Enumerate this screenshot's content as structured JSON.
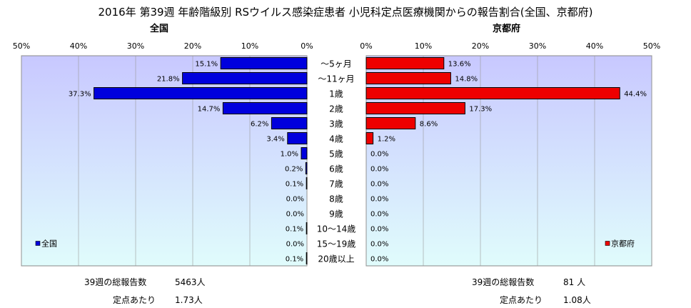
{
  "chart_data": {
    "type": "bar",
    "title": "2016年 第39週 年齢階級別 RSウイルス感染症患者 小児科定点医療機関からの報告割合(全国、京都府)",
    "categories": [
      "～5ヶ月",
      "～11ヶ月",
      "1歳",
      "2歳",
      "3歳",
      "4歳",
      "5歳",
      "6歳",
      "7歳",
      "8歳",
      "9歳",
      "10～14歳",
      "15～19歳",
      "20歳以上"
    ],
    "series": [
      {
        "name": "全国",
        "color": "#0000dd",
        "values": [
          15.1,
          21.8,
          37.3,
          14.7,
          6.2,
          3.4,
          1.0,
          0.2,
          0.1,
          0.0,
          0.0,
          0.1,
          0.0,
          0.1
        ],
        "labels": [
          "15.1%",
          "21.8%",
          "37.3%",
          "14.7%",
          "6.2%",
          "3.4%",
          "1.0%",
          "0.2%",
          "0.1%",
          "0.0%",
          "0.0%",
          "0.1%",
          "0.0%",
          "0.1%"
        ]
      },
      {
        "name": "京都府",
        "color": "#ee0000",
        "values": [
          13.6,
          14.8,
          44.4,
          17.3,
          8.6,
          1.2,
          0.0,
          0.0,
          0.0,
          0.0,
          0.0,
          0.0,
          0.0,
          0.0
        ],
        "labels": [
          "13.6%",
          "14.8%",
          "44.4%",
          "17.3%",
          "8.6%",
          "1.2%",
          "0.0%",
          "0.0%",
          "0.0%",
          "0.0%",
          "0.0%",
          "0.0%",
          "0.0%",
          "0.0%"
        ]
      }
    ],
    "xlim": [
      0,
      50
    ],
    "ticks": [
      "0%",
      "10%",
      "20%",
      "30%",
      "40%",
      "50%"
    ],
    "left_ticks": [
      "50%",
      "40%",
      "30%",
      "20%",
      "10%",
      "0%"
    ],
    "subtitles": {
      "left": "全国",
      "right": "京都府"
    },
    "legend": {
      "left": "全国",
      "right": "京都府",
      "placement": "bottom-left / bottom-right"
    },
    "grid": true,
    "plot_background_top": "#c8c8ff",
    "plot_background_bottom": "#e0fcfc"
  },
  "footer": {
    "national": {
      "total_label": "39週の総報告数",
      "total_value": "5463人",
      "per_label": "定点あたり",
      "per_value": "1.73人"
    },
    "kyoto": {
      "total_label": "39週の総報告数",
      "total_value": "81 人",
      "per_label": "定点あたり",
      "per_value": "1.08人"
    }
  }
}
